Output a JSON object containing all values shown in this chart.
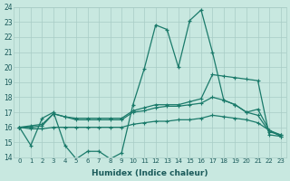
{
  "xlabel": "Humidex (Indice chaleur)",
  "x_values": [
    0,
    1,
    2,
    3,
    4,
    5,
    6,
    7,
    8,
    9,
    10,
    11,
    12,
    13,
    14,
    15,
    16,
    17,
    18,
    19,
    20,
    21,
    22,
    23
  ],
  "line1": [
    16.0,
    14.8,
    16.6,
    17.0,
    14.8,
    13.9,
    14.4,
    14.4,
    13.9,
    14.3,
    17.5,
    19.9,
    22.8,
    22.5,
    20.0,
    23.1,
    23.8,
    21.0,
    17.8,
    17.5,
    17.0,
    17.2,
    15.8,
    15.5
  ],
  "line2": [
    16.0,
    16.1,
    16.2,
    16.9,
    16.7,
    16.6,
    16.6,
    16.6,
    16.6,
    16.6,
    17.1,
    17.3,
    17.5,
    17.5,
    17.5,
    17.7,
    17.9,
    19.5,
    19.4,
    19.3,
    19.2,
    19.1,
    15.5,
    15.4
  ],
  "line3": [
    16.0,
    16.0,
    16.1,
    16.9,
    16.7,
    16.5,
    16.5,
    16.5,
    16.5,
    16.5,
    17.0,
    17.1,
    17.3,
    17.4,
    17.4,
    17.5,
    17.6,
    18.0,
    17.8,
    17.5,
    17.0,
    16.8,
    15.7,
    15.5
  ],
  "line4": [
    16.0,
    15.9,
    15.9,
    16.0,
    16.0,
    16.0,
    16.0,
    16.0,
    16.0,
    16.0,
    16.2,
    16.3,
    16.4,
    16.4,
    16.5,
    16.5,
    16.6,
    16.8,
    16.7,
    16.6,
    16.5,
    16.3,
    15.8,
    15.4
  ],
  "ylim": [
    14,
    24
  ],
  "yticks": [
    14,
    15,
    16,
    17,
    18,
    19,
    20,
    21,
    22,
    23,
    24
  ],
  "xlim": [
    -0.5,
    23.5
  ],
  "xticks": [
    0,
    1,
    2,
    3,
    4,
    5,
    6,
    7,
    8,
    9,
    10,
    11,
    12,
    13,
    14,
    15,
    16,
    17,
    18,
    19,
    20,
    21,
    22,
    23
  ],
  "line_color": "#1a7a6a",
  "bg_color": "#c8e8e0",
  "grid_color": "#a8ccc5",
  "text_color": "#1a5a5a"
}
